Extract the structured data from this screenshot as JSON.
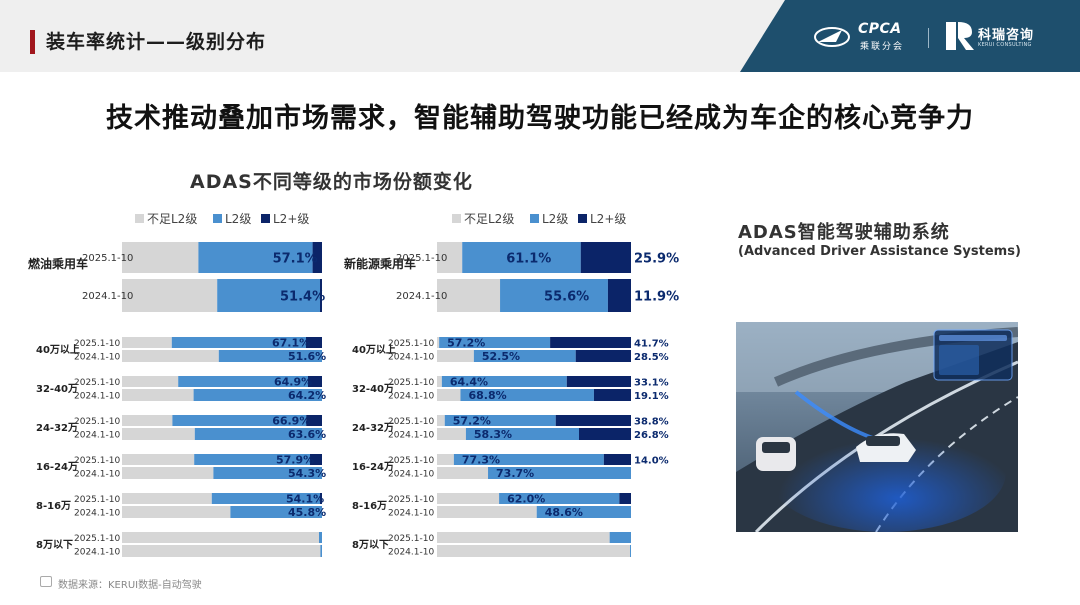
{
  "header": {
    "title": "装车率统计——级别分布"
  },
  "logos": {
    "cpca": {
      "name": "CPCA",
      "sub": "乘联分会"
    },
    "kerui": {
      "name": "科瑞咨询",
      "sub": "KERUI CONSULTING"
    }
  },
  "headline": "技术推动叠加市场需求，智能辅助驾驶功能已经成为车企的核心竞争力",
  "chart_title": "ADAS不同等级的市场份额变化",
  "adas": {
    "title": "ADAS智能驾驶辅助系统",
    "subtitle": "(Advanced Driver Assistance Systems)"
  },
  "footer": {
    "source": "数据来源：KERUI数据-自动驾驶"
  },
  "colors": {
    "below_l2": "#d6d6d6",
    "l2": "#4a90cf",
    "l2plus": "#0b2468",
    "brand_band": "#1e4f6d",
    "accent": "#a1161d"
  },
  "chart_data": [
    {
      "type": "bar",
      "stacked": true,
      "orientation": "horizontal",
      "legend": [
        "不足L2级",
        "L2级",
        "L2+级"
      ],
      "legend_position": "top",
      "total": {
        "label": "燃油乘用车",
        "periods": [
          "2025.1-10",
          "2024.1-10"
        ],
        "below_l2": [
          38.2,
          47.6
        ],
        "l2": [
          57.1,
          51.4
        ],
        "l2plus": [
          4.7,
          1.0
        ],
        "l2_label": [
          "57.1%",
          "51.4%"
        ],
        "l2plus_label": [
          "",
          ""
        ]
      },
      "segments": [
        {
          "label": "40万以上",
          "periods": [
            "2025.1-10",
            "2024.1-10"
          ],
          "below_l2": [
            24.9,
            48.4
          ],
          "l2": [
            67.1,
            51.6
          ],
          "l2plus": [
            8.0,
            0.0
          ],
          "l2_label": [
            "67.1%",
            "51.6%"
          ],
          "l2plus_label": [
            "",
            ""
          ]
        },
        {
          "label": "32-40万",
          "periods": [
            "2025.1-10",
            "2024.1-10"
          ],
          "below_l2": [
            28.1,
            35.8
          ],
          "l2": [
            64.9,
            64.2
          ],
          "l2plus": [
            7.0,
            0.0
          ],
          "l2_label": [
            "64.9%",
            "64.2%"
          ],
          "l2plus_label": [
            "",
            ""
          ]
        },
        {
          "label": "24-32万",
          "periods": [
            "2025.1-10",
            "2024.1-10"
          ],
          "below_l2": [
            25.2,
            36.4
          ],
          "l2": [
            66.9,
            63.6
          ],
          "l2plus": [
            7.9,
            0.0
          ],
          "l2_label": [
            "66.9%",
            "63.6%"
          ],
          "l2plus_label": [
            "",
            ""
          ]
        },
        {
          "label": "16-24万",
          "periods": [
            "2025.1-10",
            "2024.1-10"
          ],
          "below_l2": [
            36.1,
            45.7
          ],
          "l2": [
            57.9,
            54.3
          ],
          "l2plus": [
            6.0,
            0.0
          ],
          "l2_label": [
            "57.9%",
            "54.3%"
          ],
          "l2plus_label": [
            "",
            ""
          ]
        },
        {
          "label": "8-16万",
          "periods": [
            "2025.1-10",
            "2024.1-10"
          ],
          "below_l2": [
            44.9,
            54.2
          ],
          "l2": [
            54.1,
            45.8
          ],
          "l2plus": [
            1.0,
            0.0
          ],
          "l2_label": [
            "54.1%",
            "45.8%"
          ],
          "l2plus_label": [
            "",
            ""
          ]
        },
        {
          "label": "8万以下",
          "periods": [
            "2025.1-10",
            "2024.1-10"
          ],
          "below_l2": [
            98.5,
            99.2
          ],
          "l2": [
            1.5,
            0.8
          ],
          "l2plus": [
            0.0,
            0.0
          ],
          "l2_label": [
            "",
            ""
          ],
          "l2plus_label": [
            "",
            ""
          ]
        }
      ]
    },
    {
      "type": "bar",
      "stacked": true,
      "orientation": "horizontal",
      "legend": [
        "不足L2级",
        "L2级",
        "L2+级"
      ],
      "legend_position": "top",
      "total": {
        "label": "新能源乘用车",
        "periods": [
          "2025.1-10",
          "2024.1-10"
        ],
        "below_l2": [
          13.0,
          32.5
        ],
        "l2": [
          61.1,
          55.6
        ],
        "l2plus": [
          25.9,
          11.9
        ],
        "l2_label": [
          "61.1%",
          "55.6%"
        ],
        "l2plus_label": [
          "25.9%",
          "11.9%"
        ]
      },
      "segments": [
        {
          "label": "40万以上",
          "periods": [
            "2025.1-10",
            "2024.1-10"
          ],
          "below_l2": [
            1.1,
            19.0
          ],
          "l2": [
            57.2,
            52.5
          ],
          "l2plus": [
            41.7,
            28.5
          ],
          "l2_label": [
            "57.2%",
            "52.5%"
          ],
          "l2plus_label": [
            "41.7%",
            "28.5%"
          ]
        },
        {
          "label": "32-40万",
          "periods": [
            "2025.1-10",
            "2024.1-10"
          ],
          "below_l2": [
            2.5,
            12.1
          ],
          "l2": [
            64.4,
            68.8
          ],
          "l2plus": [
            33.1,
            19.1
          ],
          "l2_label": [
            "64.4%",
            "68.8%"
          ],
          "l2plus_label": [
            "33.1%",
            "19.1%"
          ]
        },
        {
          "label": "24-32万",
          "periods": [
            "2025.1-10",
            "2024.1-10"
          ],
          "below_l2": [
            4.0,
            14.9
          ],
          "l2": [
            57.2,
            58.3
          ],
          "l2plus": [
            38.8,
            26.8
          ],
          "l2_label": [
            "57.2%",
            "58.3%"
          ],
          "l2plus_label": [
            "38.8%",
            "26.8%"
          ]
        },
        {
          "label": "16-24万",
          "periods": [
            "2025.1-10",
            "2024.1-10"
          ],
          "below_l2": [
            8.7,
            26.3
          ],
          "l2": [
            77.3,
            73.7
          ],
          "l2plus": [
            14.0,
            0.0
          ],
          "l2_label": [
            "77.3%",
            "73.7%"
          ],
          "l2plus_label": [
            "14.0%",
            ""
          ]
        },
        {
          "label": "8-16万",
          "periods": [
            "2025.1-10",
            "2024.1-10"
          ],
          "below_l2": [
            32.0,
            51.4
          ],
          "l2": [
            62.0,
            48.6
          ],
          "l2plus": [
            6.0,
            0.0
          ],
          "l2_label": [
            "62.0%",
            "48.6%"
          ],
          "l2plus_label": [
            "",
            ""
          ]
        },
        {
          "label": "8万以下",
          "periods": [
            "2025.1-10",
            "2024.1-10"
          ],
          "below_l2": [
            89.0,
            99.5
          ],
          "l2": [
            11.0,
            0.5
          ],
          "l2plus": [
            0.0,
            0.0
          ],
          "l2_label": [
            "",
            ""
          ],
          "l2plus_label": [
            "",
            ""
          ]
        }
      ]
    }
  ]
}
